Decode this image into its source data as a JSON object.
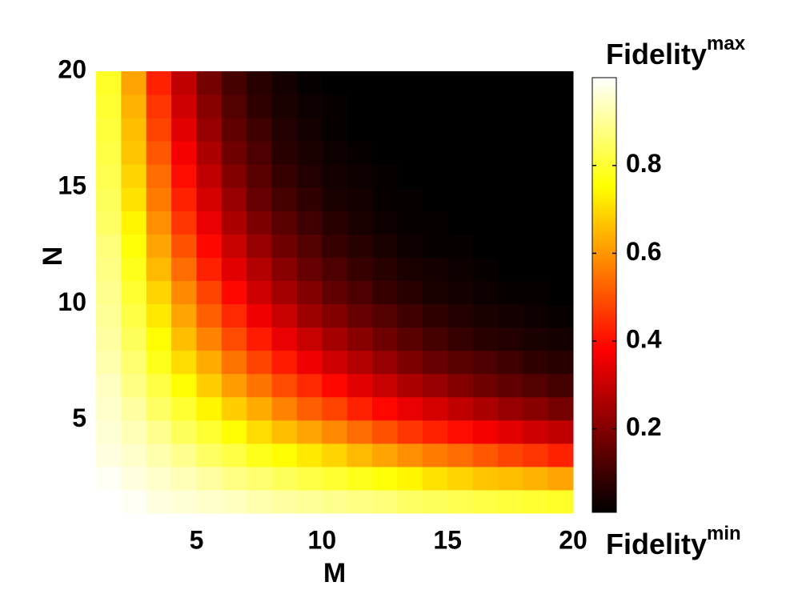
{
  "chart_data": {
    "type": "heatmap",
    "x": [
      1,
      2,
      3,
      4,
      5,
      6,
      7,
      8,
      9,
      10,
      11,
      12,
      13,
      14,
      15,
      16,
      17,
      18,
      19,
      20
    ],
    "y": [
      1,
      2,
      3,
      4,
      5,
      6,
      7,
      8,
      9,
      10,
      11,
      12,
      13,
      14,
      15,
      16,
      17,
      18,
      19,
      20
    ],
    "z": [
      [
        1.0,
        0.99,
        0.97,
        0.96,
        0.95,
        0.94,
        0.92,
        0.91,
        0.9,
        0.89,
        0.88,
        0.87,
        0.85,
        0.84,
        0.83,
        0.82,
        0.81,
        0.8,
        0.79
      ],
      [
        0.99,
        0.97,
        0.95,
        0.93,
        0.91,
        0.88,
        0.86,
        0.84,
        0.82,
        0.8,
        0.78,
        0.76,
        0.74,
        0.71,
        0.69,
        0.67,
        0.66,
        0.64,
        0.62
      ],
      [
        0.97,
        0.95,
        0.92,
        0.89,
        0.85,
        0.82,
        0.78,
        0.75,
        0.72,
        0.69,
        0.65,
        0.62,
        0.59,
        0.56,
        0.54,
        0.51,
        0.48,
        0.46,
        0.43
      ],
      [
        0.96,
        0.93,
        0.89,
        0.84,
        0.8,
        0.75,
        0.7,
        0.66,
        0.62,
        0.58,
        0.54,
        0.5,
        0.46,
        0.43,
        0.4,
        0.37,
        0.34,
        0.31,
        0.29
      ],
      [
        0.95,
        0.91,
        0.85,
        0.8,
        0.74,
        0.68,
        0.63,
        0.57,
        0.52,
        0.48,
        0.43,
        0.39,
        0.35,
        0.32,
        0.29,
        0.26,
        0.23,
        0.21,
        0.18
      ],
      [
        0.94,
        0.88,
        0.82,
        0.75,
        0.68,
        0.61,
        0.55,
        0.49,
        0.44,
        0.39,
        0.34,
        0.3,
        0.26,
        0.23,
        0.2,
        0.17,
        0.15,
        0.13,
        0.11
      ],
      [
        0.92,
        0.86,
        0.78,
        0.7,
        0.63,
        0.55,
        0.48,
        0.42,
        0.36,
        0.31,
        0.27,
        0.23,
        0.19,
        0.16,
        0.14,
        0.12,
        0.1,
        0.08,
        0.07
      ],
      [
        0.91,
        0.84,
        0.75,
        0.66,
        0.57,
        0.49,
        0.42,
        0.35,
        0.3,
        0.25,
        0.21,
        0.17,
        0.14,
        0.11,
        0.09,
        0.07,
        0.06,
        0.05,
        0.04
      ],
      [
        0.9,
        0.82,
        0.72,
        0.62,
        0.52,
        0.44,
        0.36,
        0.3,
        0.24,
        0.2,
        0.16,
        0.13,
        0.1,
        0.08,
        0.06,
        0.05,
        0.04,
        0.03,
        0.02
      ],
      [
        0.89,
        0.8,
        0.69,
        0.58,
        0.48,
        0.39,
        0.31,
        0.25,
        0.2,
        0.15,
        0.12,
        0.09,
        0.07,
        0.05,
        0.04,
        0.03,
        0.02,
        0.02,
        0.01
      ],
      [
        0.88,
        0.78,
        0.65,
        0.54,
        0.43,
        0.34,
        0.27,
        0.21,
        0.16,
        0.12,
        0.09,
        0.07,
        0.05,
        0.04,
        0.03,
        0.02,
        0.01,
        0.01,
        0.01
      ],
      [
        0.87,
        0.76,
        0.62,
        0.5,
        0.39,
        0.3,
        0.23,
        0.17,
        0.13,
        0.09,
        0.07,
        0.05,
        0.03,
        0.02,
        0.02,
        0.01,
        0.01,
        0.01,
        0.01
      ],
      [
        0.85,
        0.74,
        0.59,
        0.46,
        0.35,
        0.26,
        0.19,
        0.14,
        0.1,
        0.07,
        0.05,
        0.03,
        0.02,
        0.02,
        0.01,
        0.01,
        0.01,
        0.01,
        0.01
      ],
      [
        0.84,
        0.71,
        0.56,
        0.43,
        0.32,
        0.23,
        0.16,
        0.11,
        0.08,
        0.05,
        0.04,
        0.02,
        0.02,
        0.01,
        0.01,
        0.01,
        0.01,
        0.01,
        0.01
      ],
      [
        0.83,
        0.69,
        0.54,
        0.4,
        0.29,
        0.2,
        0.14,
        0.09,
        0.06,
        0.04,
        0.03,
        0.02,
        0.01,
        0.01,
        0.01,
        0.01,
        0.01,
        0.01,
        0.01
      ],
      [
        0.82,
        0.67,
        0.51,
        0.37,
        0.26,
        0.17,
        0.12,
        0.07,
        0.05,
        0.03,
        0.02,
        0.01,
        0.01,
        0.01,
        0.01,
        0.01,
        0.01,
        0.01,
        0.01
      ],
      [
        0.81,
        0.66,
        0.48,
        0.34,
        0.23,
        0.15,
        0.1,
        0.06,
        0.04,
        0.02,
        0.01,
        0.01,
        0.01,
        0.01,
        0.01,
        0.01,
        0.01,
        0.01,
        0.01
      ],
      [
        0.8,
        0.64,
        0.46,
        0.31,
        0.21,
        0.13,
        0.08,
        0.05,
        0.03,
        0.02,
        0.01,
        0.01,
        0.01,
        0.01,
        0.01,
        0.01,
        0.01,
        0.01,
        0.01
      ],
      [
        0.79,
        0.62,
        0.43,
        0.29,
        0.18,
        0.11,
        0.07,
        0.04,
        0.02,
        0.01,
        0.01,
        0.01,
        0.01,
        0.01,
        0.01,
        0.01,
        0.01,
        0.01,
        0.01
      ]
    ],
    "xlim": [
      1,
      20
    ],
    "ylim": [
      1,
      20
    ],
    "xticks": [
      5,
      10,
      15,
      20
    ],
    "yticks": [
      5,
      10,
      15,
      20
    ],
    "xlabel": "M",
    "ylabel": "N",
    "colormap": "hot",
    "clim": [
      0.01,
      1.0
    ],
    "colorbar_ticks": [
      0.2,
      0.4,
      0.6,
      0.8
    ],
    "colorbar_label_top": {
      "text": "Fidelity",
      "sup": "max"
    },
    "colorbar_label_bottom": {
      "text": "Fidelity",
      "sup": "min"
    }
  }
}
